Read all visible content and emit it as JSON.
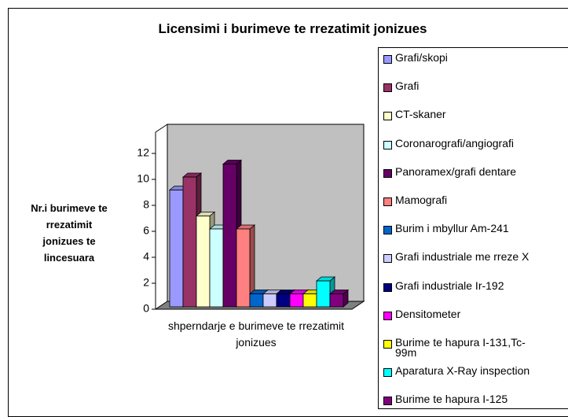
{
  "chart_data": {
    "type": "bar3d",
    "title": "Licensimi i burimeve te rrezatimit jonizues",
    "y_label": "Nr.i burimeve te rrezatimit jonizues te lincesuara",
    "categories": [
      "shperndarje e burimeve te rrezatimit jonizues"
    ],
    "ylim": [
      0,
      12
    ],
    "yticks": [
      0,
      2,
      4,
      6,
      8,
      10,
      12
    ],
    "grid": false,
    "legend": "right",
    "series": [
      {
        "name": "Grafi/skopi",
        "color": "#9999FF",
        "values": [
          9
        ]
      },
      {
        "name": "Grafi",
        "color": "#993366",
        "values": [
          10
        ]
      },
      {
        "name": "CT-skaner",
        "color": "#FFFFCC",
        "values": [
          7
        ]
      },
      {
        "name": "Coronarografi/angiografi",
        "color": "#CCFFFF",
        "values": [
          6
        ]
      },
      {
        "name": "Panoramex/grafi dentare",
        "color": "#660066",
        "values": [
          11
        ]
      },
      {
        "name": "Mamografi",
        "color": "#FF8080",
        "values": [
          6
        ]
      },
      {
        "name": "Burim i mbyllur Am-241",
        "color": "#0066CC",
        "values": [
          1
        ]
      },
      {
        "name": "Grafi industriale me rreze X",
        "color": "#CCCCFF",
        "values": [
          1
        ]
      },
      {
        "name": "Grafi industriale Ir-192",
        "color": "#000080",
        "values": [
          1
        ]
      },
      {
        "name": "Densitometer",
        "color": "#FF00FF",
        "values": [
          1
        ]
      },
      {
        "name": "Burime te hapura I-131,Tc-99m",
        "color": "#FFFF00",
        "values": [
          1
        ]
      },
      {
        "name": "Aparatura X-Ray inspection",
        "color": "#00FFFF",
        "values": [
          2
        ]
      },
      {
        "name": "Burime te hapura I-125",
        "color": "#800080",
        "values": [
          1
        ]
      }
    ]
  }
}
